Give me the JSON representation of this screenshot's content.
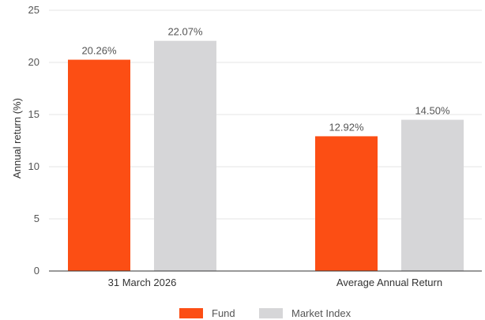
{
  "chart_data": {
    "type": "bar",
    "title": "",
    "xlabel": "",
    "ylabel": "Annual return (%)",
    "ylim": [
      0,
      25
    ],
    "yticks": [
      0,
      5,
      10,
      15,
      20,
      25
    ],
    "grid": true,
    "legend_position": "bottom-center",
    "categories": [
      "31 March 2026",
      "Average Annual Return"
    ],
    "series": [
      {
        "name": "Fund",
        "color": "#fc4e14",
        "values": [
          20.26,
          12.92
        ],
        "labels": [
          "20.26%",
          "12.92%"
        ]
      },
      {
        "name": "Market Index",
        "color": "#d6d6d8",
        "values": [
          22.07,
          14.5
        ],
        "labels": [
          "22.07%",
          "14.50%"
        ]
      }
    ]
  }
}
